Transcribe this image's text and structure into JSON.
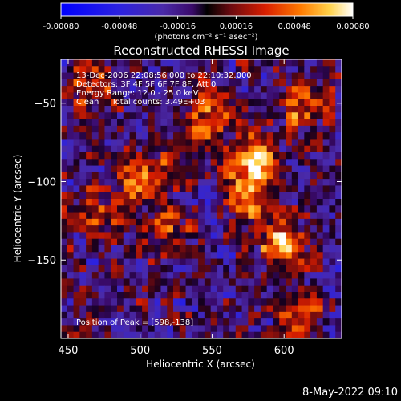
{
  "colorbar": {
    "ticks": [
      "-0.00080",
      "-0.00048",
      "-0.00016",
      "0.00016",
      "0.00048",
      "0.00080"
    ],
    "units": "(photons cm⁻² s⁻¹ asec⁻²)",
    "range": [
      -0.0008,
      0.0008
    ]
  },
  "info_lines": {
    "time": "13-Dec-2006 22:08:56.000 to 22:10:32.000",
    "detectors": "Detectors: 3F 4F 5F 6F 7F 8F, Att 0",
    "energy": "Energy Range: 12.0 - 25.0 keV",
    "clean": "Clean     Total counts: 3.49E+03"
  },
  "peak_text": "Position of Peak = [598,-138]",
  "footer_date": "8-May-2022 09:10",
  "chart_data": {
    "type": "heatmap",
    "title": "Reconstructed RHESSI Image",
    "xlabel": "Heliocentric X (arcsec)",
    "ylabel": "Heliocentric Y (arcsec)",
    "xlim": [
      445,
      640
    ],
    "ylim": [
      -200,
      -22
    ],
    "xticks": [
      450,
      500,
      550,
      600
    ],
    "yticks": [
      -50,
      -100,
      -150
    ],
    "peak": [
      598,
      -138
    ],
    "colormap": "rhessi-blue-purple-red-yellow",
    "grid_size": [
      45,
      42
    ],
    "bright_sources": [
      {
        "x": 503,
        "y": -98,
        "value": 0.0007
      },
      {
        "x": 548,
        "y": -56,
        "value": 0.00055
      },
      {
        "x": 580,
        "y": -87,
        "value": 0.00075
      },
      {
        "x": 598,
        "y": -138,
        "value": 0.0008
      },
      {
        "x": 575,
        "y": -110,
        "value": 0.0006
      },
      {
        "x": 612,
        "y": -50,
        "value": 0.0005
      },
      {
        "x": 470,
        "y": -118,
        "value": 0.0004
      },
      {
        "x": 520,
        "y": -132,
        "value": 0.00045
      },
      {
        "x": 468,
        "y": -40,
        "value": 0.00045
      },
      {
        "x": 610,
        "y": -185,
        "value": 0.0004
      }
    ]
  }
}
